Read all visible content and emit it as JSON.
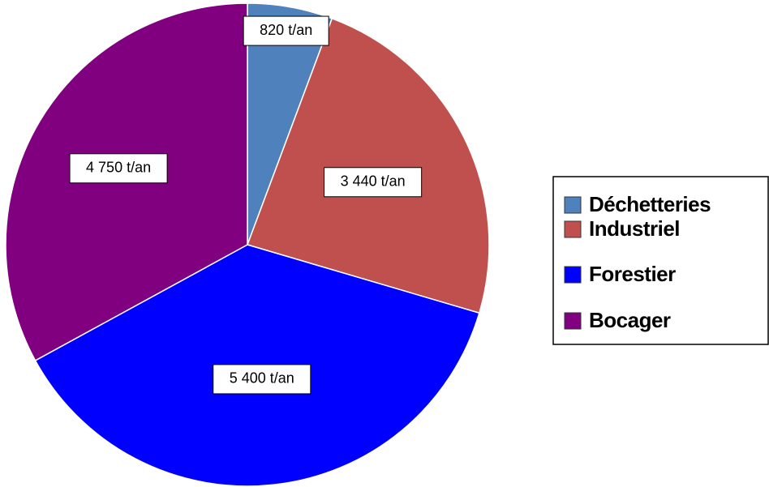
{
  "chart_data": {
    "type": "pie",
    "categories": [
      "Déchetteries",
      "Industriel",
      "Forestier",
      "Bocager"
    ],
    "values": [
      820,
      3440,
      5400,
      4750
    ],
    "value_labels": [
      "820 t/an",
      "3 440 t/an",
      "5 400 t/an",
      "4 750 t/an"
    ],
    "colors": [
      "#4f81bd",
      "#c0504d",
      "#0000ff",
      "#800080"
    ],
    "legend": "right"
  }
}
